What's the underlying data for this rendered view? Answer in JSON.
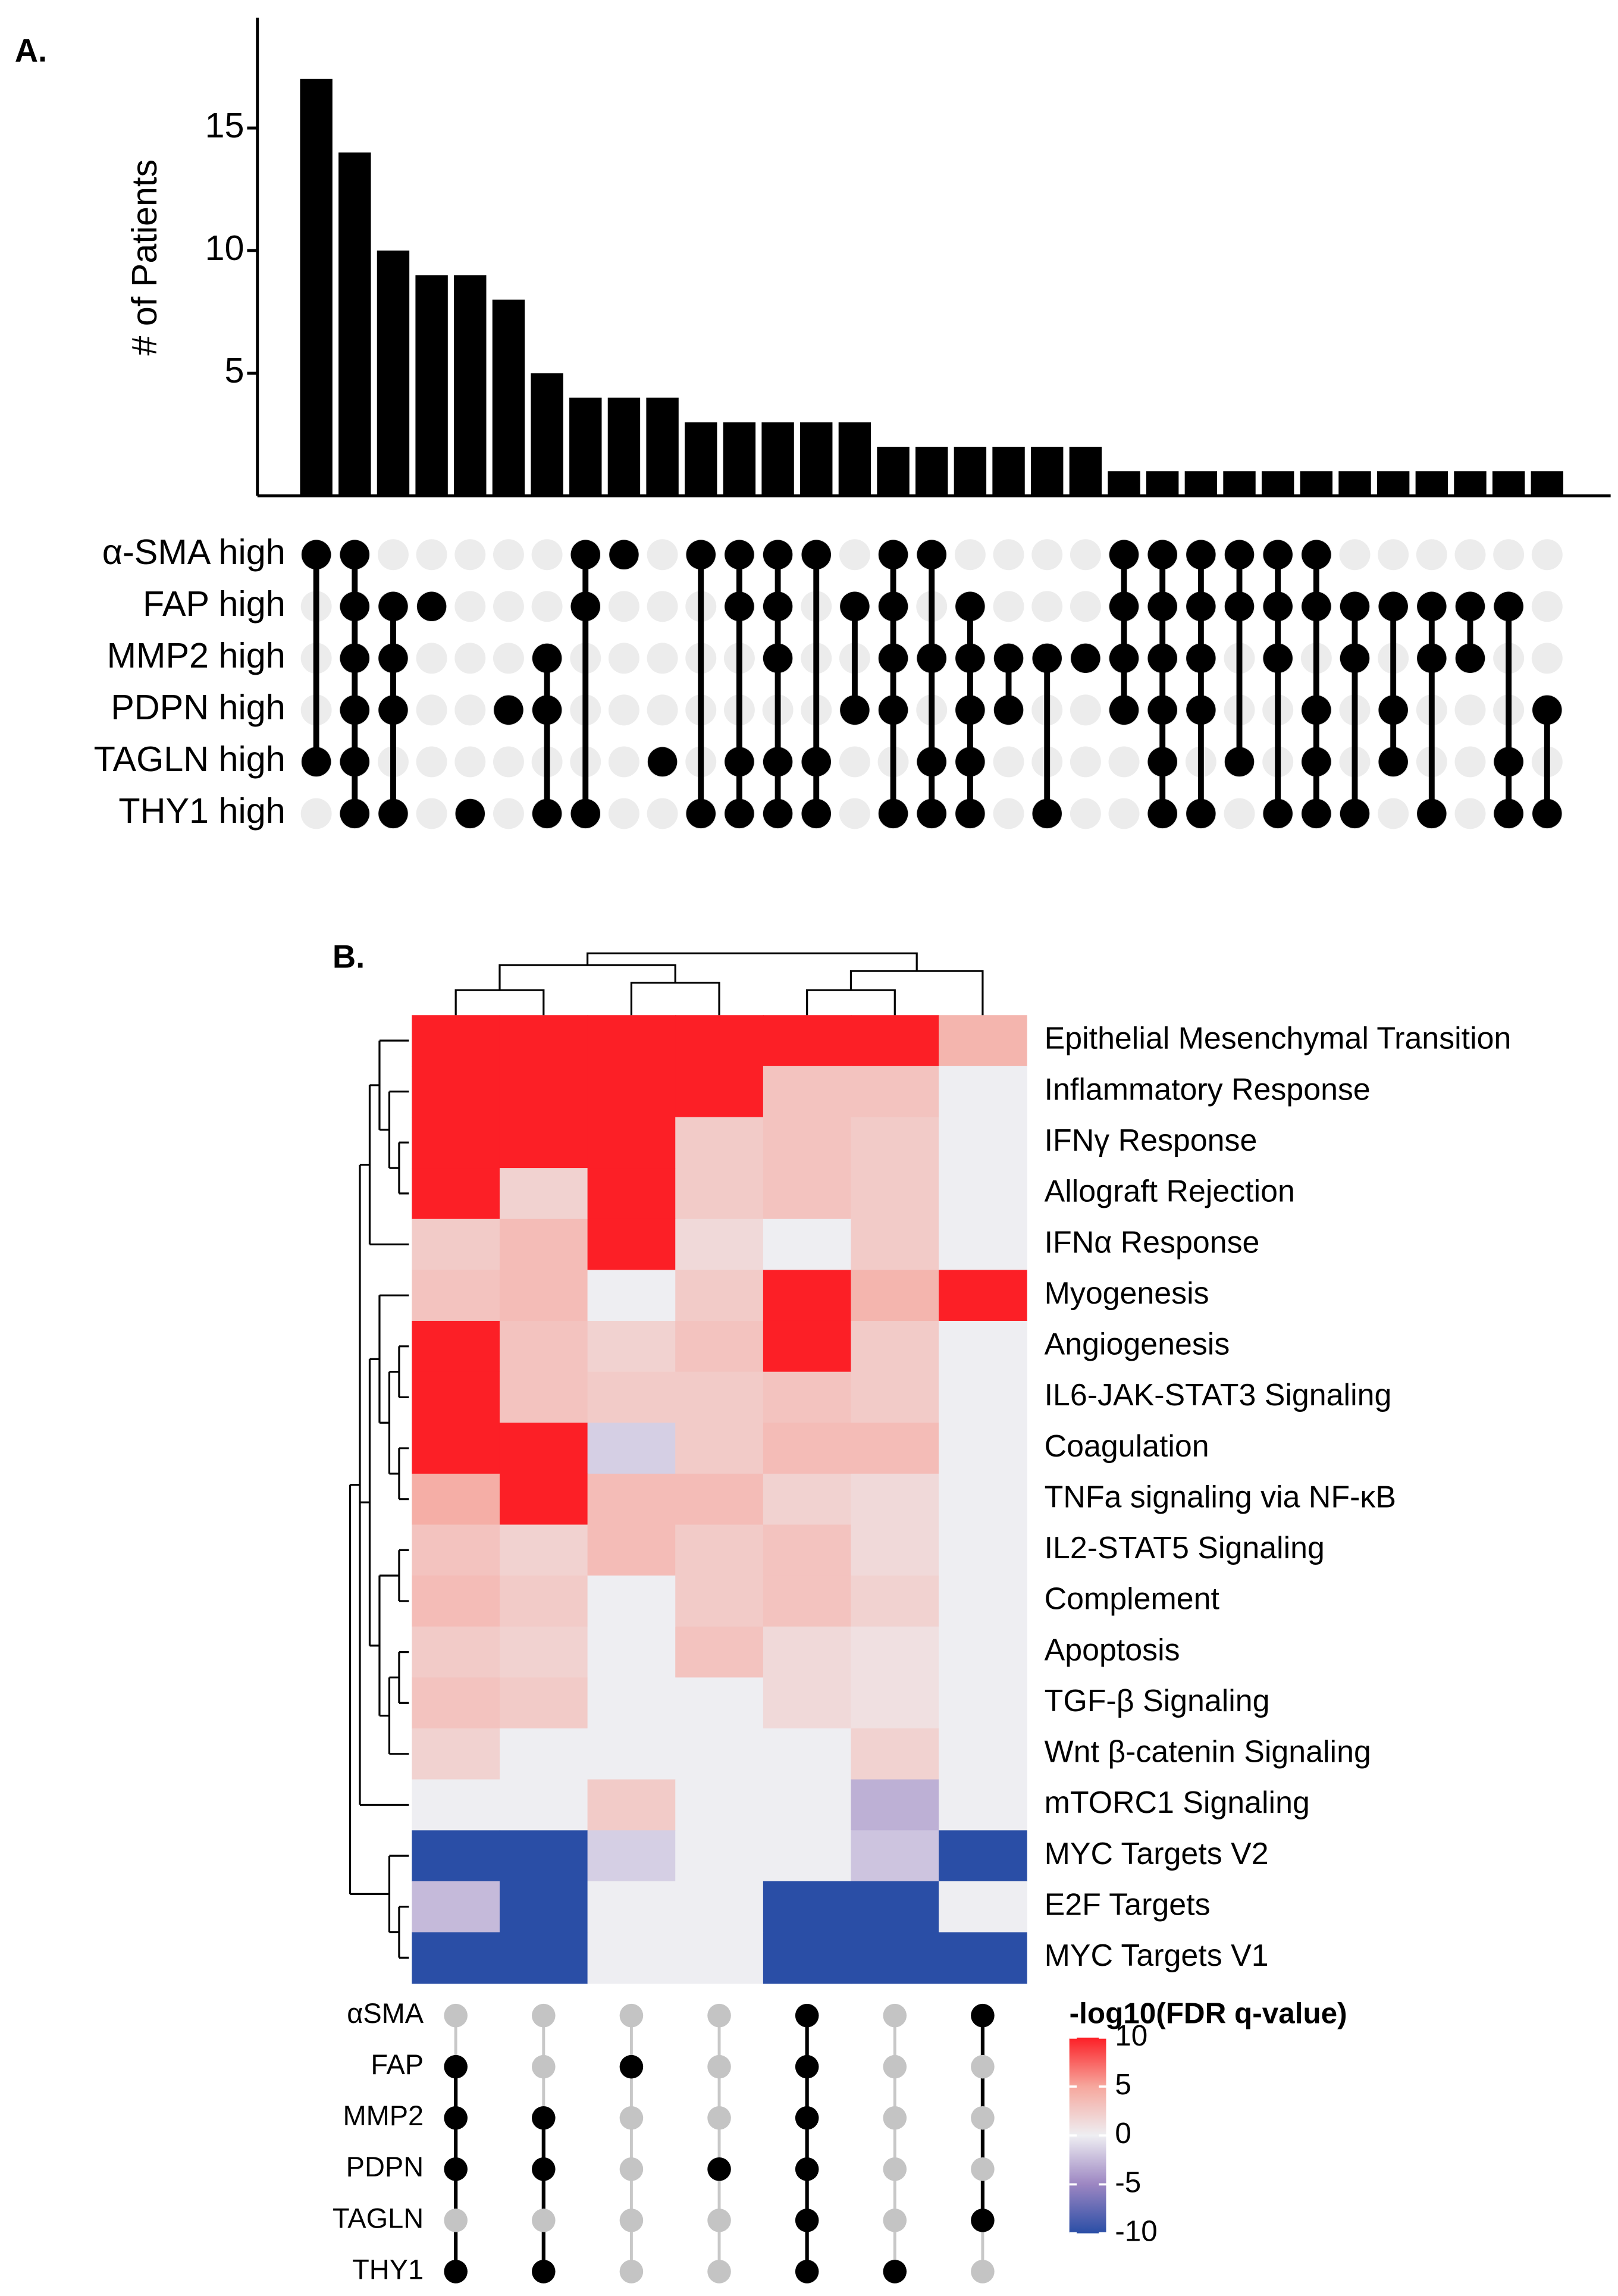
{
  "chart_data": [
    {
      "type": "upset",
      "panel": "A.",
      "ylabel": "# of Patients",
      "color": "#000000",
      "sets": [
        "α-SMA high",
        "FAP high",
        "MMP2 high",
        "PDPN high",
        "TAGLN high",
        "THY1 high"
      ],
      "values": [
        17,
        14,
        10,
        9,
        9,
        8,
        5,
        4,
        4,
        4,
        3,
        3,
        3,
        3,
        3,
        2,
        2,
        2,
        2,
        2,
        2,
        1,
        1,
        1,
        1,
        1,
        1,
        1,
        1,
        1,
        1,
        1,
        1
      ],
      "membership": [
        [
          1,
          0,
          0,
          0,
          1,
          0
        ],
        [
          1,
          1,
          1,
          1,
          1,
          1
        ],
        [
          0,
          1,
          1,
          1,
          0,
          1
        ],
        [
          0,
          1,
          0,
          0,
          0,
          0
        ],
        [
          0,
          0,
          0,
          0,
          0,
          1
        ],
        [
          0,
          0,
          0,
          1,
          0,
          0
        ],
        [
          0,
          0,
          1,
          1,
          0,
          1
        ],
        [
          1,
          1,
          0,
          0,
          0,
          1
        ],
        [
          1,
          0,
          0,
          0,
          0,
          0
        ],
        [
          0,
          0,
          0,
          0,
          1,
          0
        ],
        [
          1,
          0,
          0,
          0,
          0,
          1
        ],
        [
          1,
          1,
          0,
          0,
          1,
          1
        ],
        [
          1,
          1,
          1,
          0,
          1,
          1
        ],
        [
          1,
          0,
          0,
          0,
          1,
          1
        ],
        [
          0,
          1,
          0,
          1,
          0,
          0
        ],
        [
          1,
          1,
          1,
          1,
          0,
          1
        ],
        [
          1,
          0,
          1,
          0,
          1,
          1
        ],
        [
          0,
          1,
          1,
          1,
          1,
          1
        ],
        [
          0,
          0,
          1,
          1,
          0,
          0
        ],
        [
          0,
          0,
          1,
          0,
          0,
          1
        ],
        [
          0,
          0,
          1,
          0,
          0,
          0
        ],
        [
          1,
          1,
          1,
          1,
          0,
          0
        ],
        [
          1,
          1,
          1,
          1,
          1,
          1
        ],
        [
          1,
          1,
          1,
          1,
          0,
          1
        ],
        [
          1,
          1,
          0,
          0,
          1,
          0
        ],
        [
          1,
          1,
          1,
          0,
          0,
          1
        ],
        [
          1,
          1,
          0,
          1,
          1,
          1
        ],
        [
          0,
          1,
          1,
          0,
          0,
          1
        ],
        [
          0,
          1,
          0,
          1,
          1,
          0
        ],
        [
          0,
          1,
          1,
          0,
          0,
          1
        ],
        [
          0,
          1,
          1,
          0,
          0,
          0
        ],
        [
          0,
          1,
          0,
          0,
          1,
          1
        ],
        [
          0,
          0,
          0,
          1,
          0,
          1
        ]
      ],
      "ylim": [
        0,
        19.5
      ],
      "yticks": [
        5,
        10,
        15
      ]
    },
    {
      "type": "heatmap",
      "panel": "B.",
      "colorbar_title": "-log10(FDR q-value)",
      "rows": [
        "Epithelial Mesenchymal Transition",
        "Inflammatory Response",
        "IFNγ Response",
        "Allograft Rejection",
        "IFNα Response",
        "Myogenesis",
        "Angiogenesis",
        "IL6-JAK-STAT3 Signaling",
        "Coagulation",
        "TNFa signaling via NF-κB",
        "IL2-STAT5 Signaling",
        "Complement",
        "Apoptosis",
        "TGF-β Signaling",
        "Wnt β-catenin Signaling",
        "mTORC1 Signaling",
        "MYC Targets V2",
        "E2F Targets",
        "MYC Targets V1"
      ],
      "values": [
        [
          10,
          10,
          10,
          10,
          10,
          10,
          4
        ],
        [
          10,
          10,
          10,
          10,
          3,
          3,
          0
        ],
        [
          10,
          10,
          10,
          2.5,
          3,
          2.5,
          0
        ],
        [
          10,
          2,
          10,
          2.5,
          3,
          2.5,
          0
        ],
        [
          2.5,
          3.5,
          10,
          1.5,
          0,
          2.5,
          0
        ],
        [
          3,
          3.5,
          0,
          2.5,
          10,
          4,
          10
        ],
        [
          10,
          3,
          2,
          3,
          10,
          2.5,
          0
        ],
        [
          10,
          3,
          2.5,
          2.5,
          3,
          2.5,
          0
        ],
        [
          10,
          10,
          -1.5,
          2.5,
          3.5,
          3.5,
          0
        ],
        [
          4.5,
          10,
          3.5,
          3.5,
          2,
          1.5,
          0
        ],
        [
          3,
          2,
          3.5,
          2.5,
          3,
          1.5,
          0
        ],
        [
          3.5,
          2.5,
          0,
          2.5,
          3,
          2,
          0
        ],
        [
          2.5,
          2,
          0,
          3,
          1.5,
          1,
          0
        ],
        [
          3,
          2.5,
          0,
          0,
          1.5,
          1,
          0
        ],
        [
          2,
          0,
          0,
          0,
          0,
          2,
          0
        ],
        [
          0,
          0,
          2.5,
          0,
          0,
          -3,
          0
        ],
        [
          -10,
          -10,
          -1.5,
          0,
          0,
          -2,
          -10
        ],
        [
          -2.5,
          -10,
          0,
          0,
          -10,
          -10,
          0
        ],
        [
          -10,
          -10,
          0,
          0,
          -10,
          -10,
          -10
        ]
      ],
      "sets": [
        "αSMA",
        "FAP",
        "MMP2",
        "PDPN",
        "TAGLN",
        "THY1"
      ],
      "membership": [
        [
          0,
          1,
          1,
          1,
          0,
          1
        ],
        [
          0,
          0,
          1,
          1,
          0,
          1
        ],
        [
          0,
          1,
          0,
          0,
          0,
          0
        ],
        [
          0,
          0,
          0,
          1,
          0,
          0
        ],
        [
          1,
          1,
          1,
          1,
          1,
          1
        ],
        [
          0,
          0,
          0,
          0,
          0,
          1
        ],
        [
          1,
          0,
          0,
          0,
          1,
          0
        ]
      ],
      "zlim": [
        -10,
        10
      ],
      "zticks": [
        10,
        5,
        0,
        -5,
        -10
      ],
      "colors": [
        "#2a4ea6",
        "#9c86c2",
        "#eeeef2",
        "#f6a79d",
        "#fc1f26"
      ]
    }
  ]
}
